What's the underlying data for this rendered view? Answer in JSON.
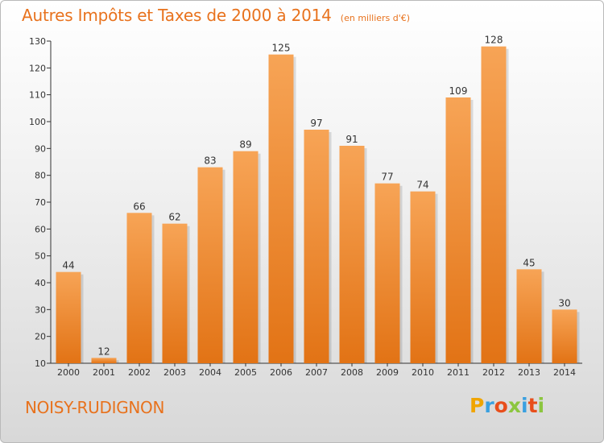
{
  "header": {
    "title": "Autres Impôts et Taxes de 2000 à 2014",
    "subtitle": "(en milliers d'€)"
  },
  "footer": {
    "commune": "NOISY-RUDIGNON",
    "brand_letters": [
      "P",
      "r",
      "o",
      "x",
      "i",
      "t",
      "i"
    ],
    "brand_colors": [
      "#f0a500",
      "#3aa0e0",
      "#e84e1b",
      "#8cc63f",
      "#3aa0e0",
      "#e84e1b",
      "#8cc63f"
    ]
  },
  "colors": {
    "accent": "#e8721d",
    "bar_light": "#f7a456",
    "bar_dark": "#e27315"
  },
  "chart_data": {
    "type": "bar",
    "title": "Autres Impôts et Taxes de 2000 à 2014",
    "subtitle": "(en milliers d'€)",
    "categories": [
      "2000",
      "2001",
      "2002",
      "2003",
      "2004",
      "2005",
      "2006",
      "2007",
      "2008",
      "2009",
      "2010",
      "2011",
      "2012",
      "2013",
      "2014"
    ],
    "values": [
      44,
      12,
      66,
      62,
      83,
      89,
      125,
      97,
      91,
      77,
      74,
      109,
      128,
      45,
      30
    ],
    "ylim": [
      10,
      130
    ],
    "yticks": [
      10,
      20,
      30,
      40,
      50,
      60,
      70,
      80,
      90,
      100,
      110,
      120,
      130
    ],
    "grid": false,
    "data_labels": true
  }
}
